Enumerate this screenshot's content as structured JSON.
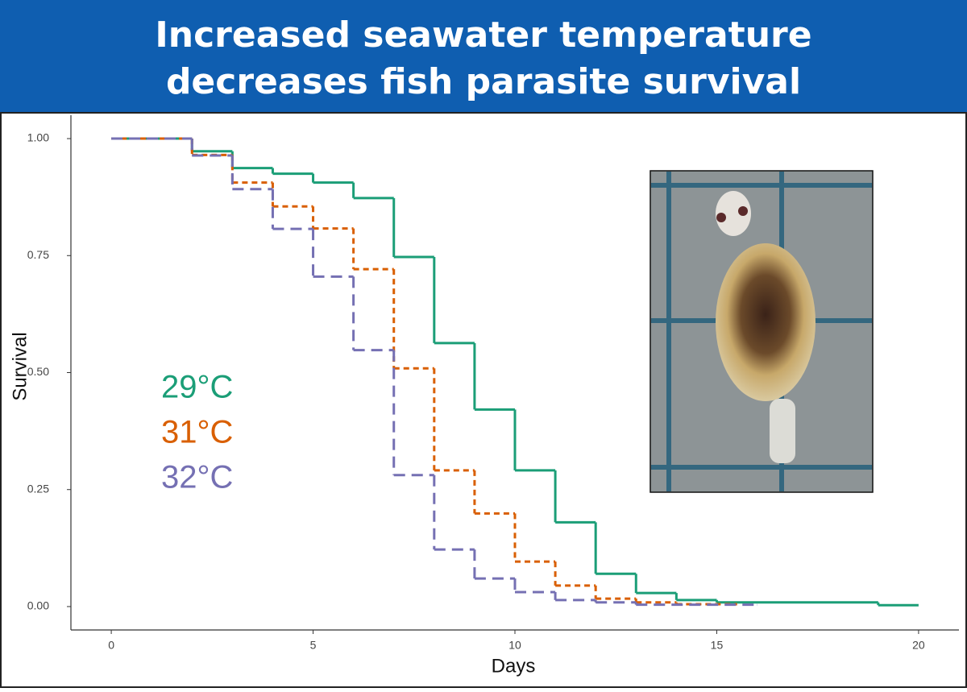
{
  "chart_data": {
    "type": "step",
    "title": [
      "Increased seawater temperature",
      "decreases fish parasite survival"
    ],
    "xlabel": "Days",
    "ylabel": "Survival",
    "xlim": [
      -1,
      21
    ],
    "ylim": [
      -0.05,
      1.05
    ],
    "xticks": [
      0,
      5,
      10,
      15,
      20
    ],
    "yticks": [
      {
        "value": 0,
        "label": "0.00"
      },
      {
        "value": 0.25,
        "label": "0.25"
      },
      {
        "value": 0.5,
        "label": "0.50"
      },
      {
        "value": 0.75,
        "label": "0.75"
      },
      {
        "value": 1,
        "label": "1.00"
      }
    ],
    "grid": false,
    "series": [
      {
        "name": "29°C",
        "color": "#1b9e77",
        "dash": "solid",
        "x": [
          0,
          2,
          3,
          4,
          5,
          6,
          7,
          8,
          9,
          10,
          11,
          12,
          13,
          14,
          15,
          19,
          20
        ],
        "values": [
          1.0,
          0.973,
          0.937,
          0.925,
          0.906,
          0.873,
          0.747,
          0.563,
          0.421,
          0.291,
          0.18,
          0.07,
          0.029,
          0.014,
          0.009,
          0.003,
          0.003
        ]
      },
      {
        "name": "31°C",
        "color": "#d95f02",
        "dash": "dotted",
        "x": [
          0,
          2,
          3,
          4,
          5,
          6,
          7,
          8,
          9,
          10,
          11,
          12,
          13,
          14,
          15.5
        ],
        "values": [
          1.0,
          0.965,
          0.906,
          0.855,
          0.808,
          0.721,
          0.509,
          0.291,
          0.199,
          0.096,
          0.045,
          0.017,
          0.009,
          0.005,
          0.005
        ]
      },
      {
        "name": "32°C",
        "color": "#7570b3",
        "dash": "dashed",
        "x": [
          0,
          2,
          3,
          4,
          5,
          6,
          7,
          8,
          9,
          10,
          11,
          12,
          13,
          16
        ],
        "values": [
          1.0,
          0.964,
          0.892,
          0.807,
          0.705,
          0.548,
          0.281,
          0.122,
          0.06,
          0.031,
          0.014,
          0.009,
          0.004,
          0.004
        ]
      }
    ]
  }
}
